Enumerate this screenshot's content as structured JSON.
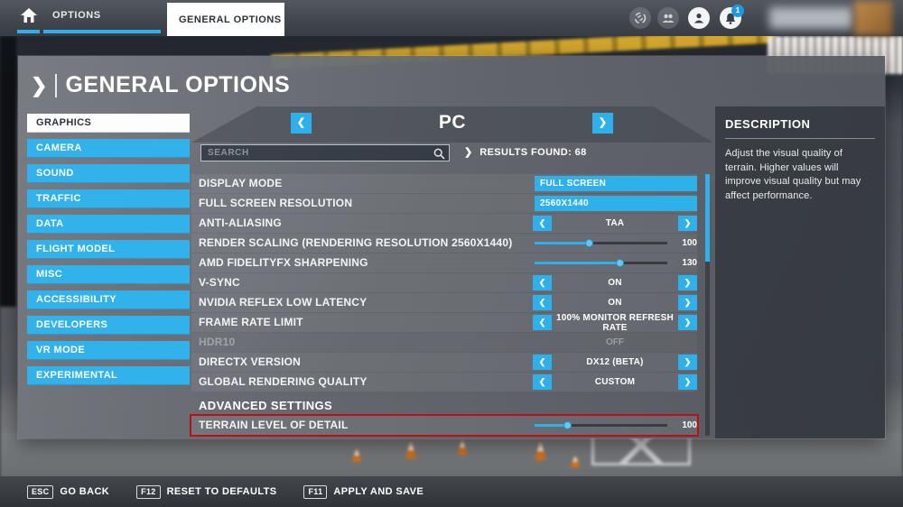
{
  "nav": {
    "tabs": [
      {
        "label": "OPTIONS"
      },
      {
        "label": "GENERAL OPTIONS",
        "active": true
      }
    ],
    "notification_count": "1"
  },
  "page": {
    "title": "GENERAL OPTIONS"
  },
  "sidebar": {
    "items": [
      {
        "label": "GRAPHICS",
        "active": true
      },
      {
        "label": "CAMERA"
      },
      {
        "label": "SOUND"
      },
      {
        "label": "TRAFFIC"
      },
      {
        "label": "DATA"
      },
      {
        "label": "FLIGHT MODEL"
      },
      {
        "label": "MISC"
      },
      {
        "label": "ACCESSIBILITY"
      },
      {
        "label": "DEVELOPERS"
      },
      {
        "label": "VR MODE"
      },
      {
        "label": "EXPERIMENTAL"
      }
    ]
  },
  "platform_selector": {
    "label": "PC"
  },
  "search": {
    "placeholder": "SEARCH",
    "results_label": "RESULTS FOUND: 68"
  },
  "settings": {
    "rows": [
      {
        "label": "DISPLAY MODE",
        "type": "dropdown",
        "value": "FULL SCREEN"
      },
      {
        "label": "FULL SCREEN RESOLUTION",
        "type": "dropdown",
        "value": "2560X1440"
      },
      {
        "label": "ANTI-ALIASING",
        "type": "stepper",
        "value": "TAA"
      },
      {
        "label": "RENDER SCALING (RENDERING RESOLUTION 2560X1440)",
        "type": "slider",
        "value": "100",
        "percent": 41
      },
      {
        "label": "AMD FIDELITYFX SHARPENING",
        "type": "slider",
        "value": "130",
        "percent": 64
      },
      {
        "label": "V-SYNC",
        "type": "stepper",
        "value": "ON"
      },
      {
        "label": "NVIDIA REFLEX LOW LATENCY",
        "type": "stepper",
        "value": "ON"
      },
      {
        "label": "FRAME RATE LIMIT",
        "type": "stepper",
        "value": "100% MONITOR REFRESH RATE"
      },
      {
        "label": "HDR10",
        "type": "disabled",
        "value": "OFF"
      },
      {
        "label": "DIRECTX VERSION",
        "type": "stepper",
        "value": "DX12 (BETA)"
      },
      {
        "label": "GLOBAL RENDERING QUALITY",
        "type": "stepper",
        "value": "CUSTOM"
      },
      {
        "label": "ADVANCED SETTINGS",
        "type": "section"
      },
      {
        "label": "TERRAIN LEVEL OF DETAIL",
        "type": "slider",
        "value": "100",
        "percent": 25,
        "highlighted": true
      }
    ]
  },
  "description": {
    "title": "DESCRIPTION",
    "body": "Adjust the visual quality of terrain. Higher values will improve visual quality but may affect performance."
  },
  "footer": {
    "hints": [
      {
        "key": "ESC",
        "label": "GO BACK"
      },
      {
        "key": "F12",
        "label": "RESET TO DEFAULTS"
      },
      {
        "key": "F11",
        "label": "APPLY AND SAVE"
      }
    ]
  },
  "colors": {
    "accent": "#2eb1ea",
    "highlight_border": "#bd1016",
    "active_tab_bg": "#ffffff"
  }
}
